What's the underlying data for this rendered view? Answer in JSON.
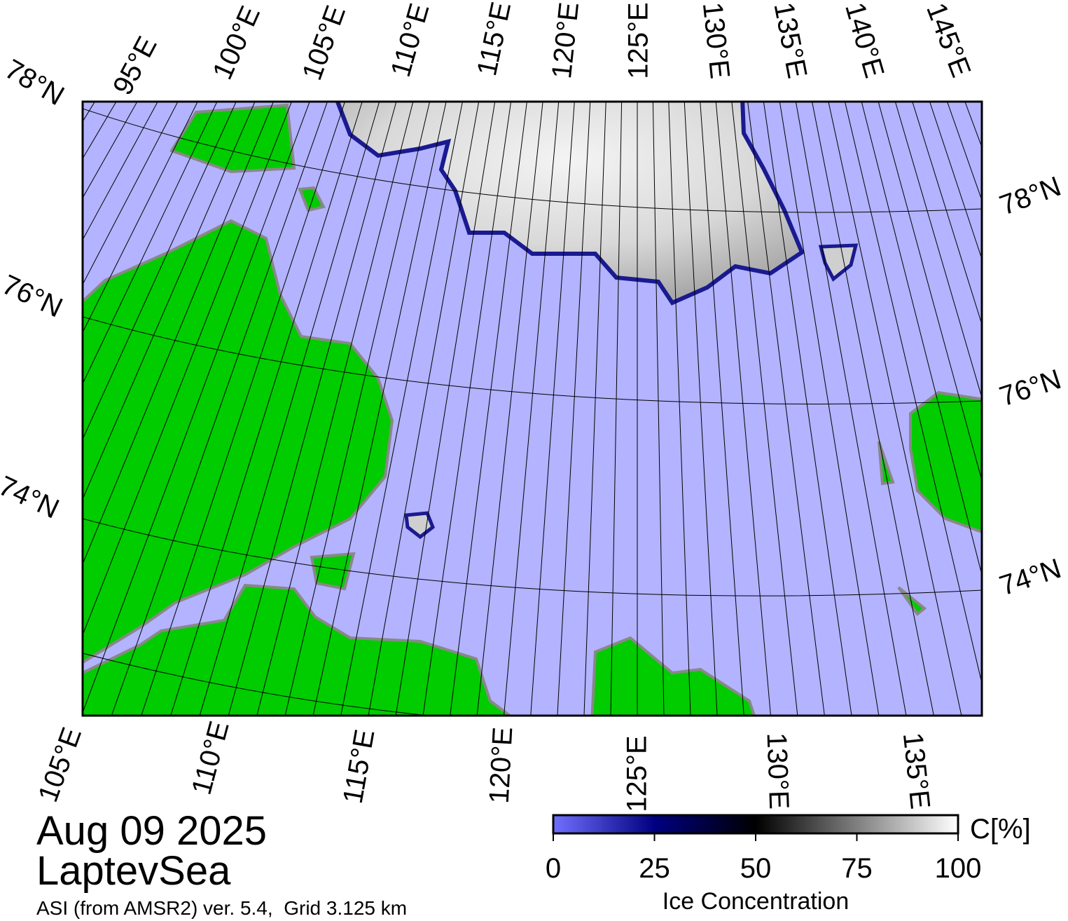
{
  "map": {
    "lon_labels_top": [
      "95°E",
      "100°E",
      "105°E",
      "110°E",
      "115°E",
      "120°E",
      "125°E",
      "130°E",
      "135°E",
      "140°E",
      "145°E"
    ],
    "lon_labels_bottom": [
      "105°E",
      "110°E",
      "115°E",
      "120°E",
      "125°E",
      "130°E",
      "135°E"
    ],
    "lat_labels_left": [
      "78°N",
      "76°N",
      "74°N"
    ],
    "lat_labels_right": [
      "78°N",
      "76°N",
      "74°N"
    ]
  },
  "date": "Aug 09 2025",
  "region": "LaptevSea",
  "source": "ASI (from AMSR2) ver. 5.4,  Grid 3.125 km",
  "colorbar": {
    "title": "Ice Concentration",
    "unit": "C[%]",
    "range": [
      0,
      100
    ],
    "ticks": [
      0,
      25,
      50,
      75,
      100
    ]
  }
}
